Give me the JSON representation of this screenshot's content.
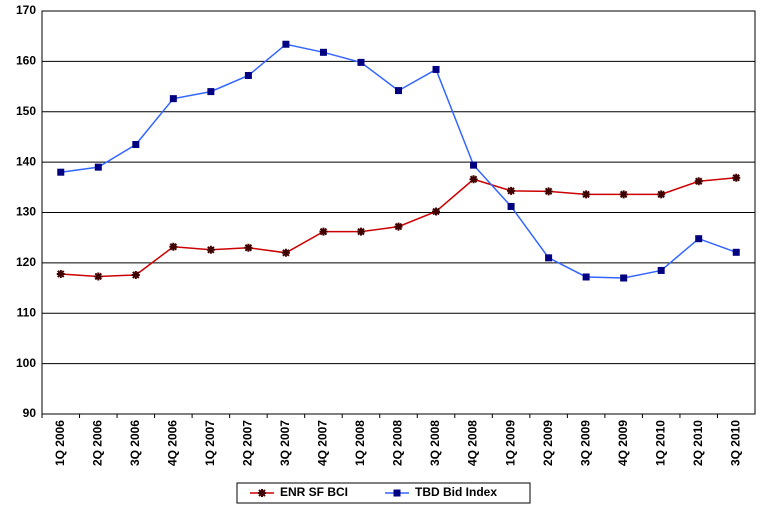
{
  "chart_data": {
    "type": "line",
    "categories": [
      "1Q 2006",
      "2Q 2006",
      "3Q 2006",
      "4Q 2006",
      "1Q 2007",
      "2Q 2007",
      "3Q 2007",
      "4Q 2007",
      "1Q 2008",
      "2Q 2008",
      "3Q 2008",
      "4Q 2008",
      "1Q 2009",
      "2Q 2009",
      "3Q 2009",
      "4Q 2009",
      "1Q 2010",
      "2Q 2010",
      "3Q 2010"
    ],
    "series": [
      {
        "name": "ENR SF BCI",
        "color": "#cc0000",
        "marker_color": "#400000",
        "values": [
          117.8,
          117.3,
          117.6,
          123.2,
          122.6,
          123.0,
          122.0,
          126.2,
          126.2,
          127.2,
          130.2,
          136.6,
          134.3,
          134.2,
          133.6,
          133.6,
          133.6,
          136.2,
          136.9
        ]
      },
      {
        "name": "TBD Bid Index",
        "color": "#3366ff",
        "marker_color": "#000080",
        "values": [
          138.0,
          139.0,
          143.5,
          152.6,
          154.0,
          157.2,
          163.4,
          161.8,
          159.8,
          154.2,
          158.4,
          139.4,
          131.2,
          121.0,
          117.2,
          117.0,
          118.5,
          124.8,
          122.1
        ]
      }
    ],
    "ylim": [
      90,
      170
    ],
    "yticks": [
      90,
      100,
      110,
      120,
      130,
      140,
      150,
      160,
      170
    ],
    "grid": true
  }
}
